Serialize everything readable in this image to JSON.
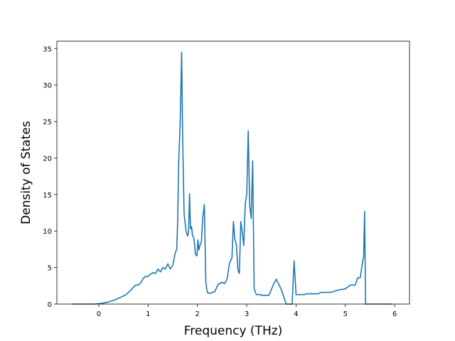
{
  "chart_data": {
    "type": "line",
    "title": "",
    "xlabel": "Frequency (THz)",
    "ylabel": "Density of States",
    "xlim": [
      -0.85,
      6.3
    ],
    "ylim": [
      0,
      36
    ],
    "x_ticks": [
      0,
      1,
      2,
      3,
      4,
      5,
      6
    ],
    "x_tick_labels": [
      "0",
      "1",
      "2",
      "3",
      "4",
      "5",
      "6"
    ],
    "y_ticks": [
      0,
      5,
      10,
      15,
      20,
      25,
      30,
      35
    ],
    "y_tick_labels": [
      "0",
      "5",
      "10",
      "15",
      "20",
      "25",
      "30",
      "35"
    ],
    "grid": false,
    "legend": "none",
    "series": [
      {
        "color": "#1f77b4",
        "x": [
          -0.55,
          -0.1,
          0.0,
          0.1,
          0.2,
          0.3,
          0.4,
          0.5,
          0.55,
          0.6,
          0.65,
          0.7,
          0.75,
          0.8,
          0.85,
          0.9,
          0.95,
          1.0,
          1.05,
          1.1,
          1.15,
          1.2,
          1.25,
          1.3,
          1.35,
          1.4,
          1.45,
          1.5,
          1.55,
          1.58,
          1.6,
          1.62,
          1.65,
          1.68,
          1.7,
          1.73,
          1.77,
          1.8,
          1.82,
          1.84,
          1.86,
          1.88,
          1.9,
          1.93,
          1.96,
          1.99,
          2.01,
          2.03,
          2.05,
          2.08,
          2.11,
          2.14,
          2.17,
          2.2,
          2.22,
          2.24,
          2.27,
          2.3,
          2.35,
          2.42,
          2.5,
          2.55,
          2.6,
          2.65,
          2.7,
          2.73,
          2.76,
          2.79,
          2.82,
          2.85,
          2.88,
          2.91,
          2.94,
          2.97,
          3.0,
          3.03,
          3.06,
          3.09,
          3.12,
          3.15,
          3.18,
          3.2,
          3.22,
          3.25,
          3.28,
          3.3,
          3.33,
          3.38,
          3.45,
          3.55,
          3.6,
          3.7,
          3.8,
          3.84,
          3.88,
          3.92,
          3.96,
          4.0,
          4.1,
          4.15,
          4.18,
          4.2,
          4.22,
          4.3,
          4.45,
          4.5,
          4.6,
          4.7,
          4.75,
          4.9,
          4.95,
          5.0,
          5.1,
          5.15,
          5.2,
          5.25,
          5.3,
          5.35,
          5.37,
          5.39,
          5.41,
          5.43,
          5.47,
          5.6,
          5.95
        ],
        "y": [
          0.0,
          0.0,
          0.05,
          0.15,
          0.3,
          0.5,
          0.8,
          1.1,
          1.3,
          1.6,
          1.9,
          2.3,
          2.6,
          2.6,
          2.9,
          3.5,
          3.8,
          3.8,
          4.1,
          4.3,
          4.2,
          4.8,
          4.4,
          5.0,
          4.8,
          5.5,
          4.8,
          5.3,
          7.0,
          7.5,
          11.5,
          19.5,
          24.5,
          34.5,
          23.0,
          12.3,
          10.0,
          9.3,
          9.8,
          15.1,
          10.3,
          10.6,
          9.4,
          9.0,
          6.8,
          6.6,
          8.8,
          7.4,
          8.0,
          8.5,
          12.0,
          13.6,
          3.0,
          1.6,
          1.5,
          1.5,
          1.5,
          1.6,
          1.7,
          2.7,
          3.0,
          2.8,
          3.4,
          5.6,
          6.3,
          11.3,
          8.8,
          8.2,
          4.7,
          4.2,
          11.3,
          9.8,
          8.0,
          13.8,
          15.0,
          23.7,
          13.5,
          11.7,
          19.6,
          2.2,
          1.5,
          1.3,
          1.3,
          1.3,
          1.3,
          1.2,
          1.2,
          1.2,
          1.2,
          2.8,
          3.4,
          2.0,
          0.0,
          0.0,
          0.0,
          0.0,
          5.9,
          1.3,
          1.3,
          1.3,
          1.3,
          1.4,
          1.4,
          1.4,
          1.4,
          1.6,
          1.6,
          1.6,
          1.7,
          2.0,
          2.0,
          2.1,
          2.6,
          2.6,
          2.6,
          3.6,
          3.6,
          5.8,
          6.5,
          12.7,
          0.0,
          0.0,
          0.0,
          0.0,
          0.0
        ]
      }
    ]
  }
}
